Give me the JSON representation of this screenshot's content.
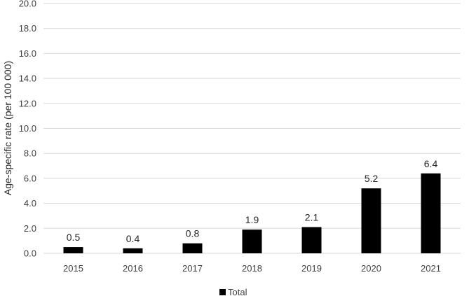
{
  "chart_data": {
    "type": "bar",
    "categories": [
      "2015",
      "2016",
      "2017",
      "2018",
      "2019",
      "2020",
      "2021"
    ],
    "series": [
      {
        "name": "Total",
        "values": [
          0.5,
          0.4,
          0.8,
          1.9,
          2.1,
          5.2,
          6.4
        ],
        "color": "#000000"
      }
    ],
    "data_labels": [
      "0.5",
      "0.4",
      "0.8",
      "1.9",
      "2.1",
      "5.2",
      "6.4"
    ],
    "ylabel": "Age-specific rate (per 100 000)",
    "xlabel": "",
    "ylim": [
      0,
      20
    ],
    "yticks": [
      "0.0",
      "2.0",
      "4.0",
      "6.0",
      "8.0",
      "10.0",
      "12.0",
      "14.0",
      "16.0",
      "18.0",
      "20.0"
    ],
    "grid": true,
    "legend": "bottom-center",
    "gridline_color": "#d9d9d9"
  }
}
